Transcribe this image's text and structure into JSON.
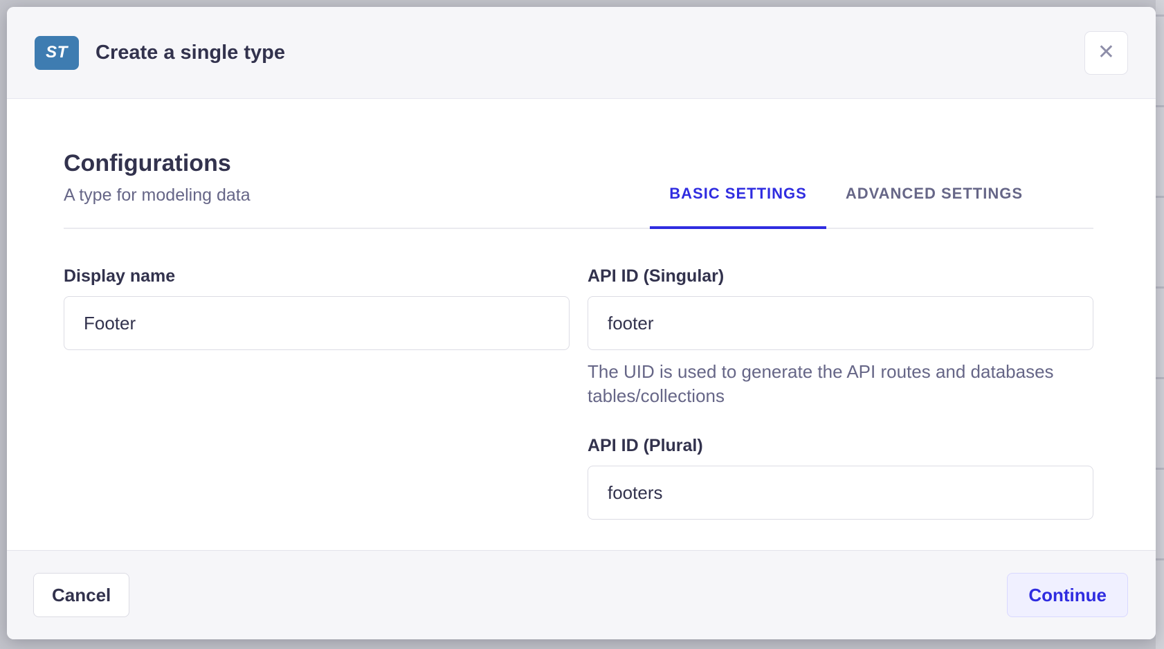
{
  "modal": {
    "badge_label": "ST",
    "title": "Create a single type"
  },
  "icons": {
    "close_glyph": "✕"
  },
  "config": {
    "heading": "Configurations",
    "subtitle": "A type for modeling data"
  },
  "tabs": {
    "basic": "BASIC SETTINGS",
    "advanced": "ADVANCED SETTINGS",
    "active": "BASIC SETTINGS"
  },
  "form": {
    "display_name": {
      "label": "Display name",
      "value": "Footer"
    },
    "api_id_singular": {
      "label": "API ID (Singular)",
      "value": "footer",
      "hint": "The UID is used to generate the API routes and databases tables/collections"
    },
    "api_id_plural": {
      "label": "API ID (Plural)",
      "value": "footers"
    }
  },
  "actions": {
    "cancel": "Cancel",
    "continue": "Continue"
  },
  "colors": {
    "accent": "#2f2ce0",
    "badge_blue": "#3e7cb1",
    "text_dark": "#32324d",
    "text_muted": "#666687",
    "header_bg": "#f6f6f9",
    "input_border": "#dcdce4"
  }
}
